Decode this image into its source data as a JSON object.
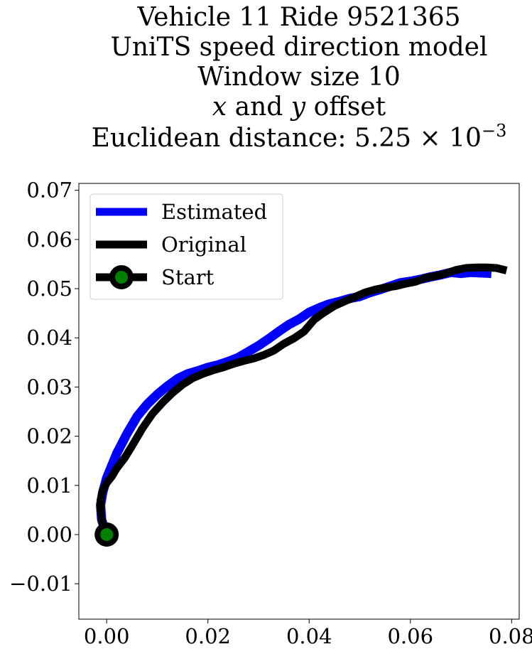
{
  "chart_data": {
    "type": "line",
    "title_lines": [
      "Vehicle 11 Ride 9521365",
      "UniTS speed direction model",
      "Window size 10"
    ],
    "title_offset": {
      "x_var": "x",
      "and": " and ",
      "y_var": "y",
      "rest": " offset"
    },
    "title_distance": {
      "prefix": "Euclidean distance: 5.25",
      "times": " × 10",
      "exponent": "−3"
    },
    "xlim": [
      -0.0055,
      0.0815
    ],
    "ylim": [
      -0.0172,
      0.0714
    ],
    "x_ticks": [
      {
        "value": 0.0,
        "label": "0.00"
      },
      {
        "value": 0.02,
        "label": "0.02"
      },
      {
        "value": 0.04,
        "label": "0.04"
      },
      {
        "value": 0.06,
        "label": "0.06"
      },
      {
        "value": 0.08,
        "label": "0.08"
      }
    ],
    "y_ticks": [
      {
        "value": -0.01,
        "label": "−0.01"
      },
      {
        "value": 0.0,
        "label": "0.00"
      },
      {
        "value": 0.01,
        "label": "0.01"
      },
      {
        "value": 0.02,
        "label": "0.02"
      },
      {
        "value": 0.03,
        "label": "0.03"
      },
      {
        "value": 0.04,
        "label": "0.04"
      },
      {
        "value": 0.05,
        "label": "0.05"
      },
      {
        "value": 0.06,
        "label": "0.06"
      },
      {
        "value": 0.07,
        "label": "0.07"
      }
    ],
    "grid": false,
    "legend_position": "upper-left",
    "series": [
      {
        "name": "Estimated",
        "color": "#0000ff",
        "x": [
          0.0,
          -0.001,
          -0.0012,
          -0.0008,
          0.0,
          0.001,
          0.002,
          0.004,
          0.006,
          0.008,
          0.01,
          0.012,
          0.014,
          0.016,
          0.018,
          0.02,
          0.022,
          0.024,
          0.026,
          0.028,
          0.03,
          0.032,
          0.034,
          0.036,
          0.038,
          0.04,
          0.042,
          0.044,
          0.046,
          0.048,
          0.05,
          0.052,
          0.054,
          0.056,
          0.058,
          0.06,
          0.062,
          0.064,
          0.066,
          0.068,
          0.07,
          0.072,
          0.074,
          0.076
        ],
        "y": [
          0.0,
          0.003,
          0.006,
          0.0085,
          0.0115,
          0.014,
          0.0165,
          0.0205,
          0.024,
          0.0265,
          0.0285,
          0.0302,
          0.0317,
          0.0327,
          0.0333,
          0.034,
          0.0345,
          0.0352,
          0.036,
          0.0372,
          0.0384,
          0.0398,
          0.0413,
          0.0427,
          0.0438,
          0.0452,
          0.0461,
          0.0469,
          0.0474,
          0.048,
          0.0484,
          0.0492,
          0.0498,
          0.0505,
          0.0512,
          0.0515,
          0.0519,
          0.0524,
          0.0528,
          0.0533,
          0.0531,
          0.0533,
          0.0532,
          0.0531
        ]
      },
      {
        "name": "Original",
        "color": "#000000",
        "x": [
          0.0,
          -0.0008,
          -0.0012,
          -0.0012,
          -0.0008,
          0.0,
          0.001,
          0.002,
          0.0035,
          0.005,
          0.007,
          0.009,
          0.011,
          0.013,
          0.015,
          0.017,
          0.019,
          0.021,
          0.023,
          0.025,
          0.027,
          0.029,
          0.031,
          0.033,
          0.035,
          0.037,
          0.039,
          0.041,
          0.043,
          0.045,
          0.047,
          0.049,
          0.051,
          0.053,
          0.055,
          0.057,
          0.059,
          0.061,
          0.063,
          0.065,
          0.067,
          0.069,
          0.071,
          0.073,
          0.075,
          0.077,
          0.079
        ],
        "y": [
          0.0,
          0.002,
          0.0045,
          0.007,
          0.009,
          0.0105,
          0.0118,
          0.0135,
          0.0155,
          0.018,
          0.0215,
          0.0245,
          0.0268,
          0.0288,
          0.0305,
          0.0318,
          0.0327,
          0.0334,
          0.034,
          0.0347,
          0.0353,
          0.0358,
          0.0365,
          0.0374,
          0.0388,
          0.0399,
          0.0413,
          0.0437,
          0.0452,
          0.0465,
          0.0474,
          0.0483,
          0.0492,
          0.0498,
          0.0502,
          0.0505,
          0.051,
          0.0514,
          0.0522,
          0.0526,
          0.0531,
          0.0538,
          0.0542,
          0.0543,
          0.0543,
          0.0542,
          0.0537
        ]
      }
    ],
    "start": {
      "name": "Start",
      "x": 0.0,
      "y": 0.0,
      "edge_color": "#000000",
      "face_color": "#008000"
    }
  }
}
